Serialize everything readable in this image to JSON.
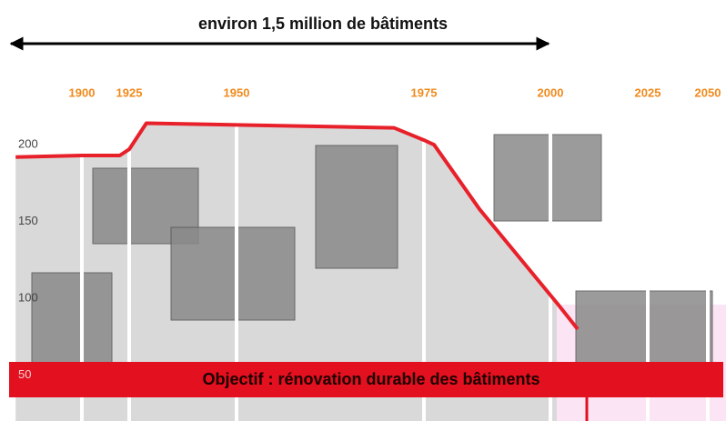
{
  "chart_data": {
    "type": "line",
    "title": "environ 1,5 million de bâtiments",
    "annotation": "Objectif : rénovation durable des bâtiments",
    "x": [
      1865,
      1900,
      1920,
      1925,
      1929,
      1971,
      1975,
      1977,
      1986,
      2002,
      2007
    ],
    "series": [
      {
        "color": "#e8202a",
        "values": [
          192,
          193,
          193,
          197,
          214,
          211,
          203,
          200,
          158,
          96,
          80
        ]
      }
    ],
    "xlim": [
      1865,
      2055
    ],
    "xticks": [
      1900,
      1925,
      1950,
      1975,
      2000,
      2025,
      2050
    ],
    "ylim": [
      25,
      235
    ],
    "yticks": [
      50,
      100,
      150,
      200
    ],
    "tick_color": "#f08a1c",
    "grid": true
  }
}
